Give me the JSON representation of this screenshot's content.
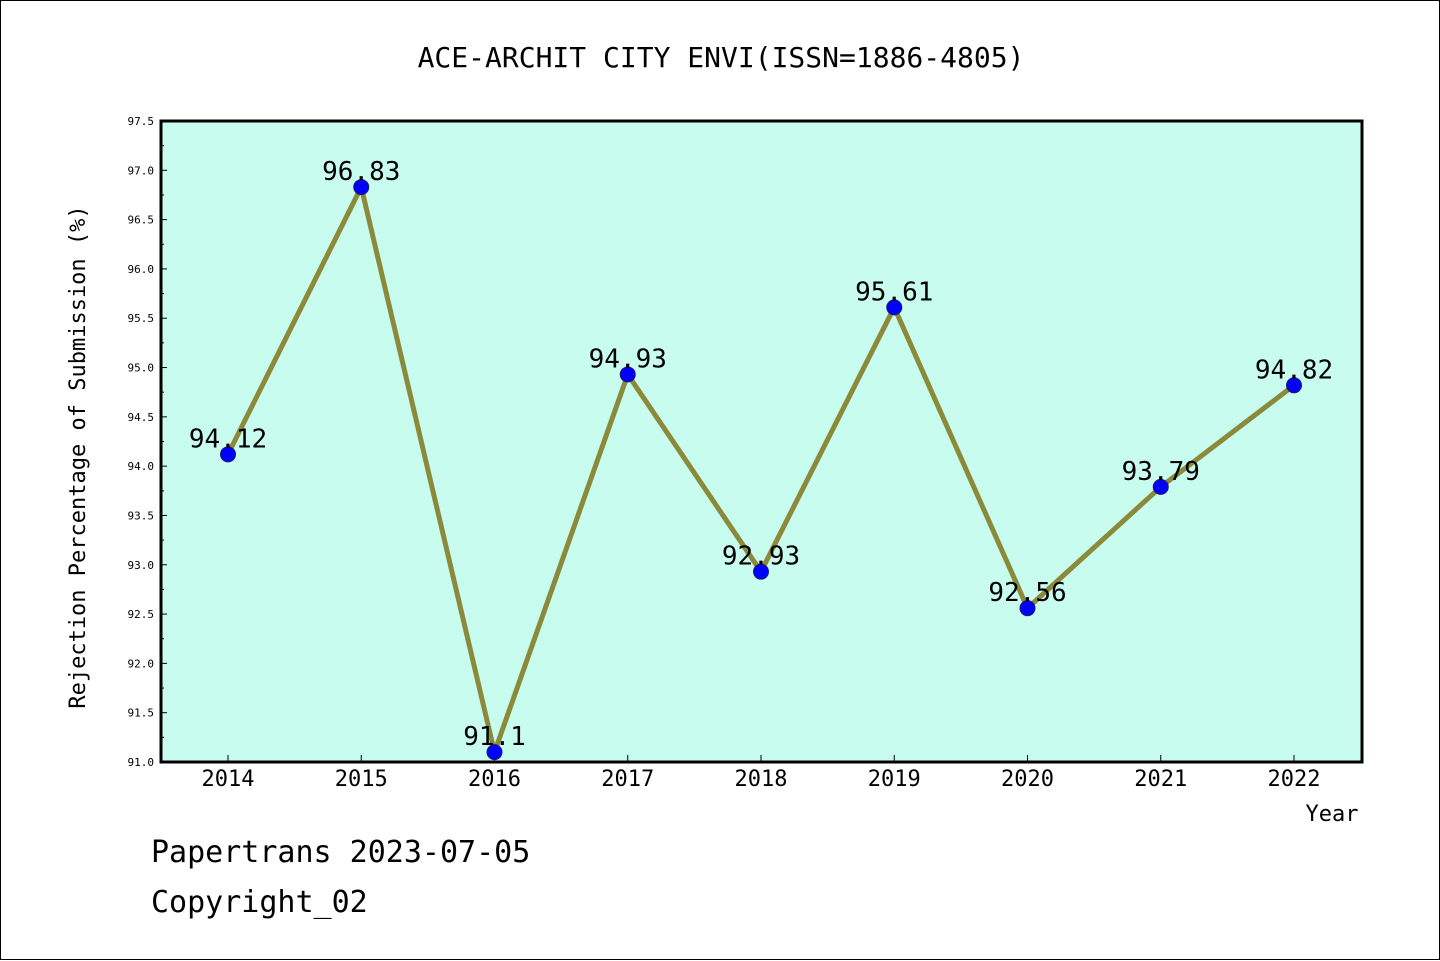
{
  "colors": {
    "plot_background": "#c8fcee",
    "line": "#8b8a3a",
    "marker_fill": "#0000ff",
    "marker_stroke": "#1a1a6e",
    "axis": "#000000"
  },
  "footer": {
    "line1": "Papertrans 2023-07-05",
    "line2": "Copyright_02"
  },
  "chart_data": {
    "type": "line",
    "title": "ACE-ARCHIT CITY ENVI(ISSN=1886-4805)",
    "xlabel": "Year",
    "ylabel": "Rejection Percentage of Submission (%)",
    "categories": [
      "2014",
      "2015",
      "2016",
      "2017",
      "2018",
      "2019",
      "2020",
      "2021",
      "2022"
    ],
    "values": [
      94.12,
      96.83,
      91.1,
      94.93,
      92.93,
      95.61,
      92.56,
      93.79,
      94.82
    ],
    "data_labels": [
      "94.12",
      "96.83",
      "91.1",
      "94.93",
      "92.93",
      "95.61",
      "92.56",
      "93.79",
      "94.82"
    ],
    "ylim": [
      91.0,
      97.5
    ],
    "yticks": [
      "91.0",
      "91.5",
      "92.0",
      "92.5",
      "93.0",
      "93.5",
      "94.0",
      "94.5",
      "95.0",
      "95.5",
      "96.0",
      "96.5",
      "97.0",
      "97.5"
    ],
    "grid": false,
    "legend": false
  }
}
